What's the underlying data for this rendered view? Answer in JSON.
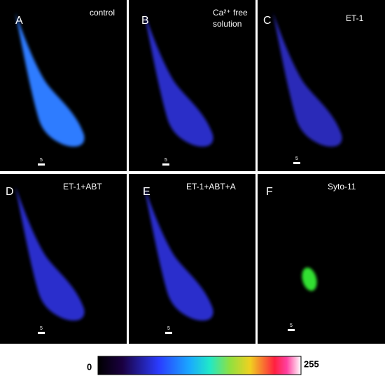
{
  "panels": [
    {
      "letter": "A",
      "label": "control",
      "scale": "5"
    },
    {
      "letter": "B",
      "label": [
        "Ca²⁺ free",
        "solution"
      ],
      "scale": "5"
    },
    {
      "letter": "C",
      "label": "ET-1",
      "scale": "5"
    },
    {
      "letter": "D",
      "label": "ET-1+ABT",
      "scale": "5"
    },
    {
      "letter": "E",
      "label": "ET-1+ABT+A",
      "scale": "5"
    },
    {
      "letter": "F",
      "label": "Syto-11",
      "scale": "5"
    }
  ],
  "colorbar": {
    "min": "0",
    "max": "255"
  }
}
